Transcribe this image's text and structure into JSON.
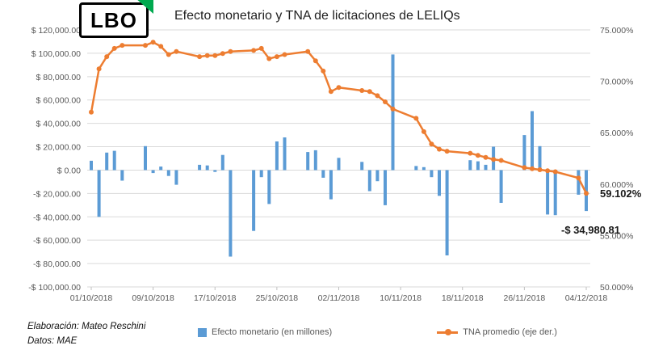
{
  "logo": {
    "text": "LBO"
  },
  "colors": {
    "bar": "#5B9BD5",
    "line": "#ED7D31",
    "green": "#00A94F",
    "grid": "#D9D9D9",
    "axis_text": "#595959"
  },
  "footer": {
    "elaboracion": "Elaboración: Mateo Reschini",
    "datos": "Datos: MAE"
  },
  "chart_data": {
    "type": "bar",
    "title": "Efecto monetario y TNA de licitaciones de LELIQs",
    "grid": true,
    "legend_position": "bottom",
    "series": [
      {
        "name": "Efecto monetario (en millones)",
        "type": "bar",
        "axis": "left",
        "color": "#5B9BD5"
      },
      {
        "name": "TNA promedio (eje der.)",
        "type": "line",
        "axis": "right",
        "color": "#ED7D31"
      }
    ],
    "left_axis": {
      "min": -100000,
      "max": 120000,
      "step": 20000,
      "ticks": [
        {
          "label": "$ 120,000.00",
          "value": 120000
        },
        {
          "label": "$ 100,000.00",
          "value": 100000
        },
        {
          "label": "$ 80,000.00",
          "value": 80000
        },
        {
          "label": "$ 60,000.00",
          "value": 60000
        },
        {
          "label": "$ 40,000.00",
          "value": 40000
        },
        {
          "label": "$ 20,000.00",
          "value": 20000
        },
        {
          "label": "$ 0.00",
          "value": 0
        },
        {
          "label": "-$ 20,000.00",
          "value": -20000
        },
        {
          "label": "-$ 40,000.00",
          "value": -40000
        },
        {
          "label": "-$ 60,000.00",
          "value": -60000
        },
        {
          "label": "-$ 80,000.00",
          "value": -80000
        },
        {
          "label": "-$ 100,000.00",
          "value": -100000
        }
      ]
    },
    "right_axis": {
      "min": 50,
      "max": 75,
      "step": 5,
      "ticks": [
        {
          "label": "75.000%",
          "value": 75
        },
        {
          "label": "70.000%",
          "value": 70
        },
        {
          "label": "65.000%",
          "value": 65
        },
        {
          "label": "60.000%",
          "value": 60
        },
        {
          "label": "55.000%",
          "value": 55
        },
        {
          "label": "50.000%",
          "value": 50
        }
      ]
    },
    "x_axis": {
      "max_day": 64,
      "ticks": [
        {
          "label": "01/10/2018",
          "day": 0
        },
        {
          "label": "09/10/2018",
          "day": 8
        },
        {
          "label": "17/10/2018",
          "day": 16
        },
        {
          "label": "25/10/2018",
          "day": 24
        },
        {
          "label": "02/11/2018",
          "day": 32
        },
        {
          "label": "10/11/2018",
          "day": 40
        },
        {
          "label": "18/11/2018",
          "day": 48
        },
        {
          "label": "26/11/2018",
          "day": 56
        },
        {
          "label": "04/12/2018",
          "day": 64
        }
      ]
    },
    "records": [
      {
        "date": "01/10/2018",
        "day": 0,
        "bar": 8000,
        "tna": 67.0
      },
      {
        "date": "02/10/2018",
        "day": 1,
        "bar": -40000,
        "tna": 71.2
      },
      {
        "date": "03/10/2018",
        "day": 2,
        "bar": 15000,
        "tna": 72.4
      },
      {
        "date": "04/10/2018",
        "day": 3,
        "bar": 16500,
        "tna": 73.2
      },
      {
        "date": "05/10/2018",
        "day": 4,
        "bar": -9000,
        "tna": 73.5
      },
      {
        "date": "08/10/2018",
        "day": 7,
        "bar": 20500,
        "tna": 73.5
      },
      {
        "date": "09/10/2018",
        "day": 8,
        "bar": -2500,
        "tna": 73.8
      },
      {
        "date": "10/10/2018",
        "day": 9,
        "bar": 3000,
        "tna": 73.4
      },
      {
        "date": "11/10/2018",
        "day": 10,
        "bar": -5000,
        "tna": 72.6
      },
      {
        "date": "12/10/2018",
        "day": 11,
        "bar": -12500,
        "tna": 72.9
      },
      {
        "date": "15/10/2018",
        "day": 14,
        "bar": 4500,
        "tna": 72.4
      },
      {
        "date": "16/10/2018",
        "day": 15,
        "bar": 4000,
        "tna": 72.5
      },
      {
        "date": "17/10/2018",
        "day": 16,
        "bar": -1500,
        "tna": 72.5
      },
      {
        "date": "18/10/2018",
        "day": 17,
        "bar": 13000,
        "tna": 72.7
      },
      {
        "date": "19/10/2018",
        "day": 18,
        "bar": -74000,
        "tna": 72.9
      },
      {
        "date": "22/10/2018",
        "day": 21,
        "bar": -52000,
        "tna": 73.0
      },
      {
        "date": "23/10/2018",
        "day": 22,
        "bar": -6000,
        "tna": 73.2
      },
      {
        "date": "24/10/2018",
        "day": 23,
        "bar": -29000,
        "tna": 72.2
      },
      {
        "date": "25/10/2018",
        "day": 24,
        "bar": 24500,
        "tna": 72.4
      },
      {
        "date": "26/10/2018",
        "day": 25,
        "bar": 28000,
        "tna": 72.6
      },
      {
        "date": "29/10/2018",
        "day": 28,
        "bar": 15500,
        "tna": 72.9
      },
      {
        "date": "30/10/2018",
        "day": 29,
        "bar": 17000,
        "tna": 72.0
      },
      {
        "date": "31/10/2018",
        "day": 30,
        "bar": -6500,
        "tna": 71.0
      },
      {
        "date": "01/11/2018",
        "day": 31,
        "bar": -25000,
        "tna": 69.0
      },
      {
        "date": "02/11/2018",
        "day": 32,
        "bar": 10500,
        "tna": 69.4
      },
      {
        "date": "05/11/2018",
        "day": 35,
        "bar": 7000,
        "tna": 69.1
      },
      {
        "date": "06/11/2018",
        "day": 36,
        "bar": -18000,
        "tna": 69.0
      },
      {
        "date": "07/11/2018",
        "day": 37,
        "bar": -9500,
        "tna": 68.6
      },
      {
        "date": "08/11/2018",
        "day": 38,
        "bar": -30000,
        "tna": 68.0
      },
      {
        "date": "09/11/2018",
        "day": 39,
        "bar": 99000,
        "tna": 67.3
      },
      {
        "date": "12/11/2018",
        "day": 42,
        "bar": 3500,
        "tna": 66.4
      },
      {
        "date": "13/11/2018",
        "day": 43,
        "bar": 2500,
        "tna": 65.1
      },
      {
        "date": "14/11/2018",
        "day": 44,
        "bar": -6000,
        "tna": 63.9
      },
      {
        "date": "15/11/2018",
        "day": 45,
        "bar": -22000,
        "tna": 63.4
      },
      {
        "date": "16/11/2018",
        "day": 46,
        "bar": -73000,
        "tna": 63.2
      },
      {
        "date": "19/11/2018",
        "day": 49,
        "bar": 8500,
        "tna": 63.0
      },
      {
        "date": "20/11/2018",
        "day": 50,
        "bar": 7500,
        "tna": 62.8
      },
      {
        "date": "21/11/2018",
        "day": 51,
        "bar": 4500,
        "tna": 62.6
      },
      {
        "date": "22/11/2018",
        "day": 52,
        "bar": 20000,
        "tna": 62.4
      },
      {
        "date": "23/11/2018",
        "day": 53,
        "bar": -28000,
        "tna": 62.3
      },
      {
        "date": "26/11/2018",
        "day": 56,
        "bar": 30000,
        "tna": 61.6
      },
      {
        "date": "27/11/2018",
        "day": 57,
        "bar": 50500,
        "tna": 61.5
      },
      {
        "date": "28/11/2018",
        "day": 58,
        "bar": 20500,
        "tna": 61.4
      },
      {
        "date": "29/11/2018",
        "day": 59,
        "bar": -38000,
        "tna": 61.3
      },
      {
        "date": "30/11/2018",
        "day": 60,
        "bar": -38500,
        "tna": 61.2
      },
      {
        "date": "03/12/2018",
        "day": 63,
        "bar": -21000,
        "tna": 60.6
      },
      {
        "date": "04/12/2018",
        "day": 64,
        "bar": -34980.81,
        "tna": 59.102
      }
    ],
    "annotations": [
      {
        "name": "tna-final-value-label",
        "text": "59.102%",
        "axis": "right",
        "value": 59.102,
        "x": 743,
        "dy": 5,
        "anchor": "start"
      },
      {
        "name": "last-bar-value-label",
        "text": "-$ 34,980.81",
        "axis": "left",
        "value": -34980.81,
        "x": 768,
        "dy": 28,
        "anchor": "end"
      }
    ]
  }
}
